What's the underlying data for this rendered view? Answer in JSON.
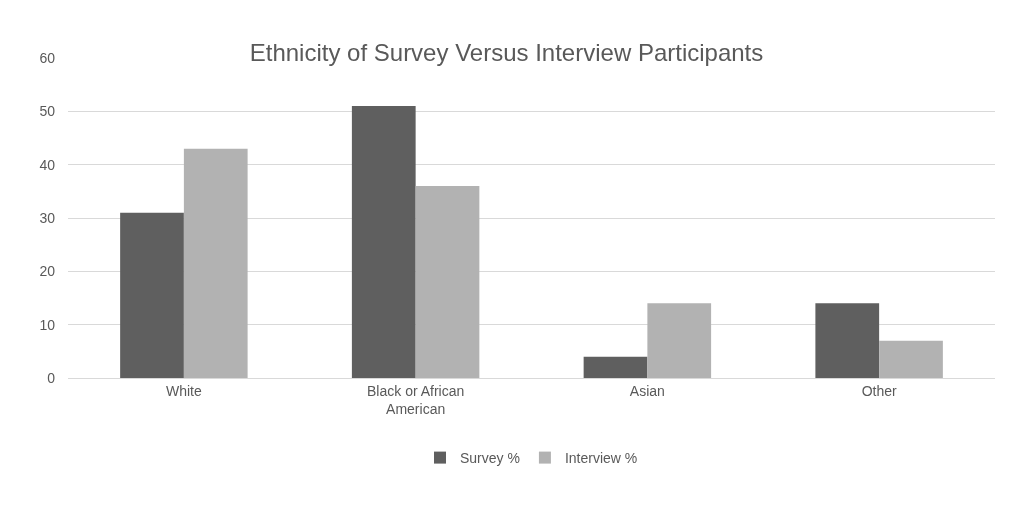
{
  "chart_data": {
    "type": "bar",
    "title": "Ethnicity of Survey Versus Interview Participants",
    "categories": [
      "White",
      "Black or African American",
      "Asian",
      "Other"
    ],
    "series": [
      {
        "name": "Survey %",
        "color": "#5f5f5f",
        "values": [
          31,
          51,
          4,
          14
        ]
      },
      {
        "name": "Interview %",
        "color": "#b2b2b2",
        "values": [
          43,
          36,
          14,
          7
        ]
      }
    ],
    "ylim": [
      0,
      60
    ],
    "yticks": [
      0,
      10,
      20,
      30,
      40,
      50,
      60
    ],
    "grid": "y",
    "legend": "bottom"
  }
}
